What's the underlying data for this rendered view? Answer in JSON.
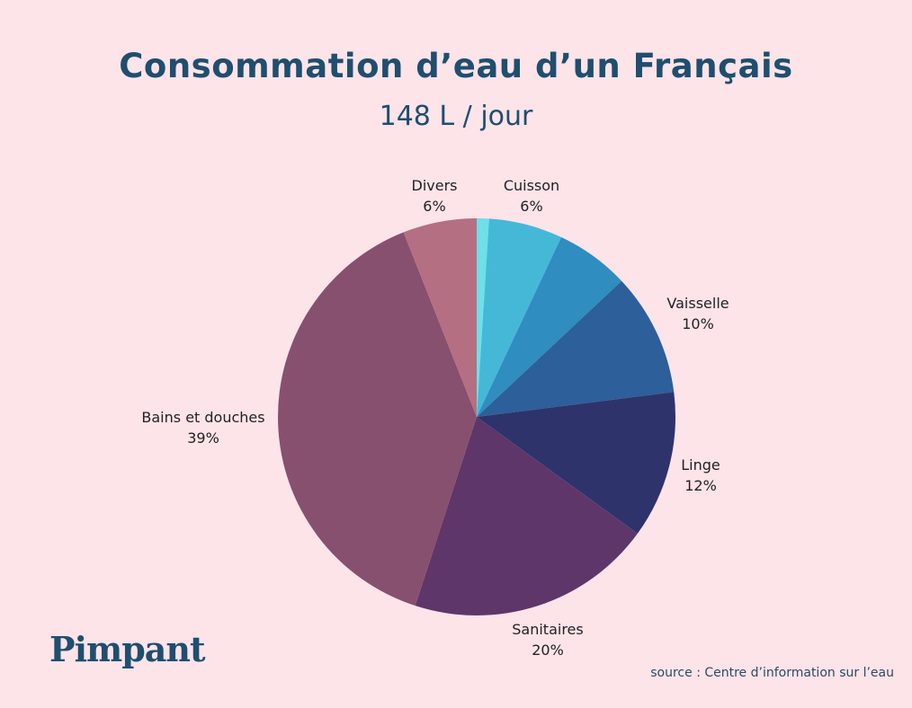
{
  "chart_data": {
    "type": "pie",
    "title": "Consommation d’eau d’un Français",
    "subtitle": "148 L / jour",
    "start": "top",
    "direction": "clockwise",
    "slices": [
      {
        "label": "",
        "value": 1,
        "value_label": "",
        "color": "#6ee0e8"
      },
      {
        "label": "Cuisson",
        "value": 6,
        "value_label": "6%",
        "color": "#45b8d8"
      },
      {
        "label": "",
        "value": 6,
        "value_label": "",
        "color": "#2f8dbf"
      },
      {
        "label": "Vaisselle",
        "value": 10,
        "value_label": "10%",
        "color": "#2d5f9a"
      },
      {
        "label": "Linge",
        "value": 12,
        "value_label": "12%",
        "color": "#2f336b"
      },
      {
        "label": "Sanitaires",
        "value": 20,
        "value_label": "20%",
        "color": "#5e3669"
      },
      {
        "label": "Bains et douches",
        "value": 39,
        "value_label": "39%",
        "color": "#87506f"
      },
      {
        "label": "Divers",
        "value": 6,
        "value_label": "6%",
        "color": "#b56f82"
      }
    ]
  },
  "brand": {
    "logo_text": "Pimpant"
  },
  "source": "source : Centre d’information sur l’eau",
  "colors": {
    "background": "#fce4e9",
    "title": "#1f4e6e"
  }
}
